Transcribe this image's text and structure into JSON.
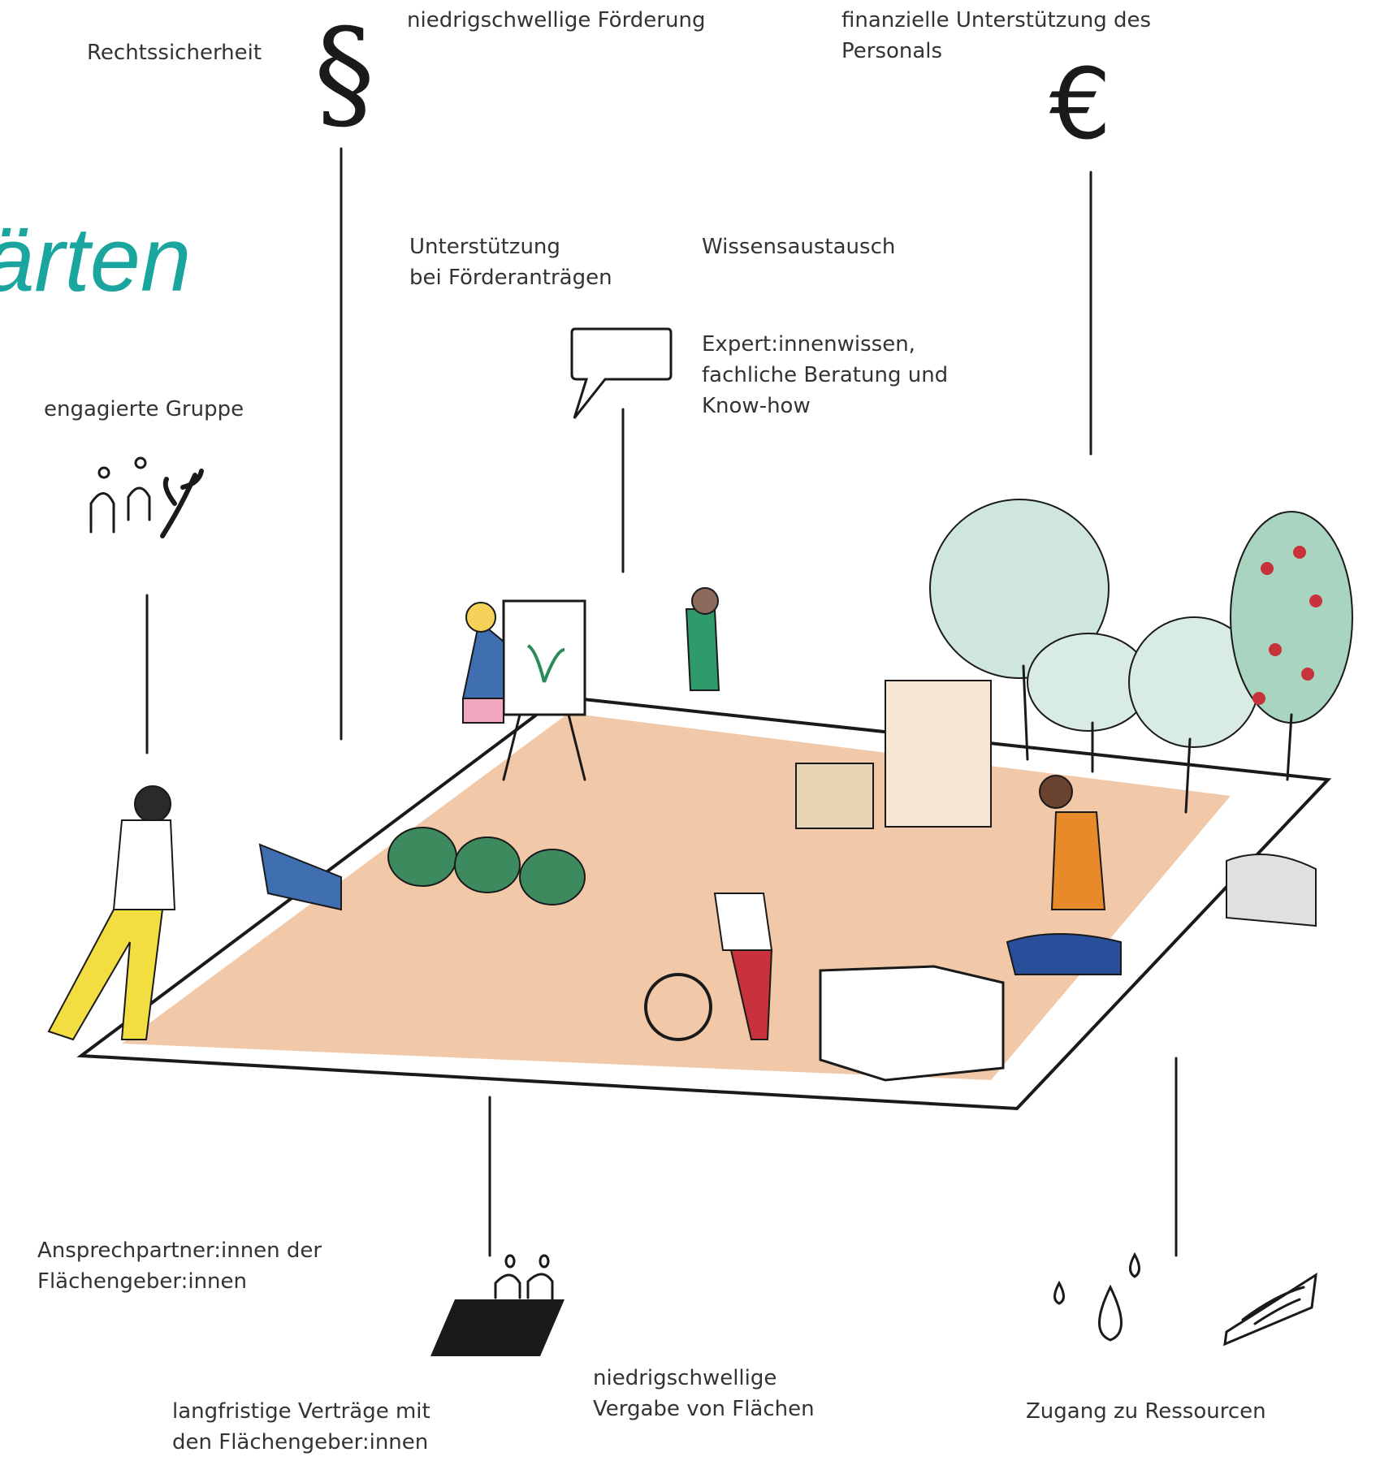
{
  "title": "ärten",
  "labels": [
    {
      "lines": [
        "Rechtssicherheit"
      ]
    },
    {
      "lines": [
        "niedrigschwellige Förderung"
      ]
    },
    {
      "lines": [
        "finanzielle Unterstützung des",
        "Personals"
      ]
    },
    {
      "lines": [
        "Unterstützung",
        "bei Förderanträgen"
      ]
    },
    {
      "lines": [
        "Wissensaustausch"
      ]
    },
    {
      "lines": [
        "Expert:innenwissen,",
        "fachliche Beratung und",
        "Know-how"
      ]
    },
    {
      "lines": [
        "engagierte Gruppe"
      ]
    },
    {
      "lines": [
        "Ansprechpartner:innen der",
        "Flächengeber:innen"
      ]
    },
    {
      "lines": [
        "langfristige Verträge mit",
        "den Flächengeber:innen"
      ]
    },
    {
      "lines": [
        "niedrigschwellige",
        "Vergabe von Flächen"
      ]
    },
    {
      "lines": [
        "Zugang zu Ressourcen"
      ]
    }
  ]
}
